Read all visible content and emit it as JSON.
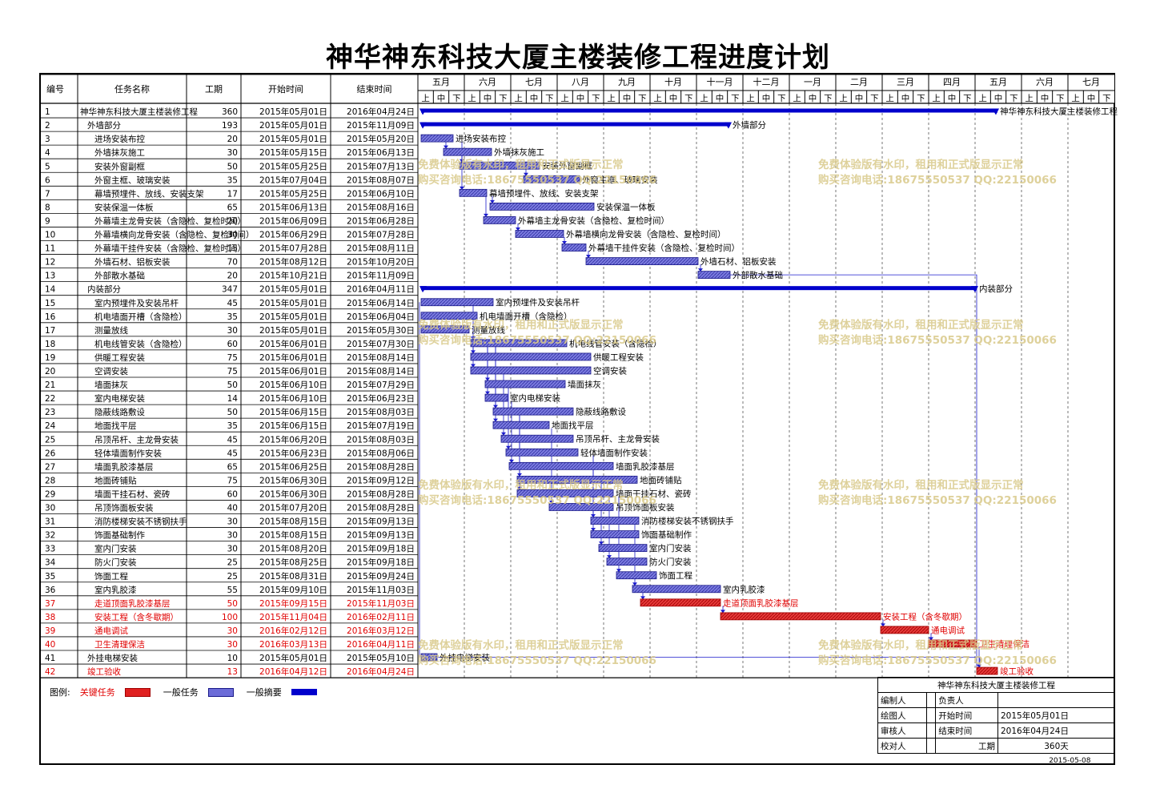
{
  "title": "神华神东科技大厦主楼装修工程进度计划",
  "columns": {
    "num": "编号",
    "name": "任务名称",
    "dur": "工期",
    "start": "开始时间",
    "end": "结束时间"
  },
  "months": [
    "五月",
    "六月",
    "七月",
    "八月",
    "九月",
    "十月",
    "十一月",
    "十二月",
    "一月",
    "二月",
    "三月",
    "四月",
    "五月",
    "六月",
    "七月"
  ],
  "dekads": [
    "上",
    "中",
    "下"
  ],
  "watermark": {
    "line1": "免费体验版有水印，租用和正式版显示正常",
    "line2": "购买咨询电话:18675550537 QQ:22150066"
  },
  "colors": {
    "summary": "#0000cc",
    "normal": "#6c6cd8",
    "critical": "#e02020",
    "watermark": "#d9c98a"
  },
  "tasks": [
    {
      "n": "1",
      "name": "神华神东科技大厦主楼装修工程",
      "dur": "360",
      "start": "2015年05月01日",
      "end": "2016年04月24日",
      "type": "summary",
      "ind": 0,
      "s": 0,
      "e": 359
    },
    {
      "n": "2",
      "name": "外墙部分",
      "dur": "193",
      "start": "2015年05月01日",
      "end": "2015年11月09日",
      "type": "summary",
      "ind": 1,
      "s": 0,
      "e": 192
    },
    {
      "n": "3",
      "name": "进场安装布控",
      "dur": "20",
      "start": "2015年05月01日",
      "end": "2015年05月20日",
      "type": "normal",
      "ind": 2,
      "s": 0,
      "e": 19
    },
    {
      "n": "4",
      "name": "外墙抹灰施工",
      "dur": "30",
      "start": "2015年05月15日",
      "end": "2015年06月13日",
      "type": "normal",
      "ind": 2,
      "s": 14,
      "e": 43
    },
    {
      "n": "5",
      "name": "安装外窗副框",
      "dur": "50",
      "start": "2015年05月25日",
      "end": "2015年07月13日",
      "type": "normal",
      "ind": 2,
      "s": 24,
      "e": 73
    },
    {
      "n": "6",
      "name": "外窗主框、玻璃安装",
      "dur": "35",
      "start": "2015年07月04日",
      "end": "2015年08月07日",
      "type": "normal",
      "ind": 2,
      "s": 64,
      "e": 98
    },
    {
      "n": "7",
      "name": "幕墙预埋件、放线、安装支架",
      "dur": "17",
      "start": "2015年05月25日",
      "end": "2015年06月10日",
      "type": "normal",
      "ind": 2,
      "s": 24,
      "e": 40
    },
    {
      "n": "8",
      "name": "安装保温一体板",
      "dur": "65",
      "start": "2015年06月13日",
      "end": "2015年08月16日",
      "type": "normal",
      "ind": 2,
      "s": 43,
      "e": 107
    },
    {
      "n": "9",
      "name": "外幕墙主龙骨安装（含隐检、复检时间）",
      "dur": "20",
      "start": "2015年06月09日",
      "end": "2015年06月28日",
      "type": "normal",
      "ind": 2,
      "s": 39,
      "e": 58
    },
    {
      "n": "10",
      "name": "外幕墙横向龙骨安装（含隐检、复检时间）",
      "dur": "30",
      "start": "2015年06月29日",
      "end": "2015年07月28日",
      "type": "normal",
      "ind": 2,
      "s": 59,
      "e": 88
    },
    {
      "n": "11",
      "name": "外幕墙干挂件安装（含隐检、复检时间）",
      "dur": "15",
      "start": "2015年07月28日",
      "end": "2015年08月11日",
      "type": "normal",
      "ind": 2,
      "s": 88,
      "e": 102
    },
    {
      "n": "12",
      "name": "外墙石材、铝板安装",
      "dur": "70",
      "start": "2015年08月12日",
      "end": "2015年10月20日",
      "type": "normal",
      "ind": 2,
      "s": 103,
      "e": 172
    },
    {
      "n": "13",
      "name": "外部散水基础",
      "dur": "20",
      "start": "2015年10月21日",
      "end": "2015年11月09日",
      "type": "normal",
      "ind": 2,
      "s": 173,
      "e": 192
    },
    {
      "n": "14",
      "name": "内装部分",
      "dur": "347",
      "start": "2015年05月01日",
      "end": "2016年04月11日",
      "type": "summary",
      "ind": 1,
      "s": 0,
      "e": 346
    },
    {
      "n": "15",
      "name": "室内预埋件及安装吊杆",
      "dur": "45",
      "start": "2015年05月01日",
      "end": "2015年06月14日",
      "type": "normal",
      "ind": 2,
      "s": 0,
      "e": 44
    },
    {
      "n": "16",
      "name": "机电墙面开槽（含隐检）",
      "dur": "35",
      "start": "2015年05月01日",
      "end": "2015年06月04日",
      "type": "normal",
      "ind": 2,
      "s": 0,
      "e": 34
    },
    {
      "n": "17",
      "name": "测量放线",
      "dur": "30",
      "start": "2015年05月01日",
      "end": "2015年05月30日",
      "type": "normal",
      "ind": 2,
      "s": 0,
      "e": 29
    },
    {
      "n": "18",
      "name": "机电线管安装（含隐检）",
      "dur": "60",
      "start": "2015年06月01日",
      "end": "2015年07月30日",
      "type": "normal",
      "ind": 2,
      "s": 31,
      "e": 90
    },
    {
      "n": "19",
      "name": "供暖工程安装",
      "dur": "75",
      "start": "2015年06月01日",
      "end": "2015年08月14日",
      "type": "normal",
      "ind": 2,
      "s": 31,
      "e": 105
    },
    {
      "n": "20",
      "name": "空调安装",
      "dur": "75",
      "start": "2015年06月01日",
      "end": "2015年08月14日",
      "type": "normal",
      "ind": 2,
      "s": 31,
      "e": 105
    },
    {
      "n": "21",
      "name": "墙面抹灰",
      "dur": "50",
      "start": "2015年06月10日",
      "end": "2015年07月29日",
      "type": "normal",
      "ind": 2,
      "s": 40,
      "e": 89
    },
    {
      "n": "22",
      "name": "室内电梯安装",
      "dur": "14",
      "start": "2015年06月10日",
      "end": "2015年06月23日",
      "type": "normal",
      "ind": 2,
      "s": 40,
      "e": 53
    },
    {
      "n": "23",
      "name": "隐蔽线路敷设",
      "dur": "50",
      "start": "2015年06月15日",
      "end": "2015年08月03日",
      "type": "normal",
      "ind": 2,
      "s": 45,
      "e": 94
    },
    {
      "n": "24",
      "name": "地面找平层",
      "dur": "35",
      "start": "2015年06月15日",
      "end": "2015年07月19日",
      "type": "normal",
      "ind": 2,
      "s": 45,
      "e": 79
    },
    {
      "n": "25",
      "name": "吊顶吊杆、主龙骨安装",
      "dur": "45",
      "start": "2015年06月20日",
      "end": "2015年08月03日",
      "type": "normal",
      "ind": 2,
      "s": 50,
      "e": 94
    },
    {
      "n": "26",
      "name": "轻体墙面制作安装",
      "dur": "45",
      "start": "2015年06月23日",
      "end": "2015年08月06日",
      "type": "normal",
      "ind": 2,
      "s": 53,
      "e": 97
    },
    {
      "n": "27",
      "name": "墙面乳胶漆基层",
      "dur": "65",
      "start": "2015年06月25日",
      "end": "2015年08月28日",
      "type": "normal",
      "ind": 2,
      "s": 55,
      "e": 119
    },
    {
      "n": "28",
      "name": "地面砖铺贴",
      "dur": "75",
      "start": "2015年06月30日",
      "end": "2015年09月12日",
      "type": "normal",
      "ind": 2,
      "s": 60,
      "e": 134
    },
    {
      "n": "29",
      "name": "墙面干挂石材、瓷砖",
      "dur": "60",
      "start": "2015年06月30日",
      "end": "2015年08月28日",
      "type": "normal",
      "ind": 2,
      "s": 60,
      "e": 119
    },
    {
      "n": "30",
      "name": "吊顶饰面板安装",
      "dur": "40",
      "start": "2015年07月20日",
      "end": "2015年08月28日",
      "type": "normal",
      "ind": 2,
      "s": 80,
      "e": 119
    },
    {
      "n": "31",
      "name": "消防楼梯安装不锈钢扶手",
      "dur": "30",
      "start": "2015年08月15日",
      "end": "2015年09月13日",
      "type": "normal",
      "ind": 2,
      "s": 106,
      "e": 135
    },
    {
      "n": "32",
      "name": "饰面基础制作",
      "dur": "30",
      "start": "2015年08月15日",
      "end": "2015年09月13日",
      "type": "normal",
      "ind": 2,
      "s": 106,
      "e": 135
    },
    {
      "n": "33",
      "name": "室内门安装",
      "dur": "30",
      "start": "2015年08月20日",
      "end": "2015年09月18日",
      "type": "normal",
      "ind": 2,
      "s": 111,
      "e": 140
    },
    {
      "n": "34",
      "name": "防火门安装",
      "dur": "25",
      "start": "2015年08月25日",
      "end": "2015年09月18日",
      "type": "normal",
      "ind": 2,
      "s": 116,
      "e": 140
    },
    {
      "n": "35",
      "name": "饰面工程",
      "dur": "25",
      "start": "2015年08月31日",
      "end": "2015年09月24日",
      "type": "normal",
      "ind": 2,
      "s": 122,
      "e": 146
    },
    {
      "n": "36",
      "name": "室内乳胶漆",
      "dur": "55",
      "start": "2015年09月10日",
      "end": "2015年11月03日",
      "type": "normal",
      "ind": 2,
      "s": 132,
      "e": 186
    },
    {
      "n": "37",
      "name": "走道顶面乳胶漆基层",
      "dur": "50",
      "start": "2015年09月15日",
      "end": "2015年11月03日",
      "type": "critical",
      "ind": 2,
      "s": 137,
      "e": 186
    },
    {
      "n": "38",
      "name": "安装工程（含冬歇期）",
      "dur": "100",
      "start": "2015年11月04日",
      "end": "2016年02月11日",
      "type": "critical",
      "ind": 2,
      "s": 187,
      "e": 286
    },
    {
      "n": "39",
      "name": "通电调试",
      "dur": "30",
      "start": "2016年02月12日",
      "end": "2016年03月12日",
      "type": "critical",
      "ind": 2,
      "s": 287,
      "e": 316
    },
    {
      "n": "40",
      "name": "卫生清理保洁",
      "dur": "30",
      "start": "2016年03月13日",
      "end": "2016年04月11日",
      "type": "critical",
      "ind": 2,
      "s": 317,
      "e": 346
    },
    {
      "n": "41",
      "name": "外挂电梯安装",
      "dur": "10",
      "start": "2015年05月01日",
      "end": "2015年05月10日",
      "type": "normal",
      "ind": 1,
      "s": 0,
      "e": 9
    },
    {
      "n": "42",
      "name": "竣工验收",
      "dur": "13",
      "start": "2016年04月12日",
      "end": "2016年04月24日",
      "type": "critical",
      "ind": 1,
      "s": 347,
      "e": 359
    }
  ],
  "legend": {
    "label": "图例:",
    "critical": "关键任务",
    "normal": "一般任务",
    "summary": "一般摘要"
  },
  "info": {
    "project": "神华神东科技大厦主楼装修工程",
    "compiler_label": "编制人",
    "compiler": "",
    "owner_label": "负责人",
    "owner": "",
    "drawer_label": "绘图人",
    "drawer": "",
    "start_label": "开始时间",
    "start": "2015年05月01日",
    "reviewer_label": "审核人",
    "reviewer": "",
    "end_label": "结束时间",
    "end": "2016年04月24日",
    "checker_label": "校对人",
    "checker": "",
    "dur_label": "工期",
    "dur": "360天",
    "date": "2015-05-08"
  }
}
